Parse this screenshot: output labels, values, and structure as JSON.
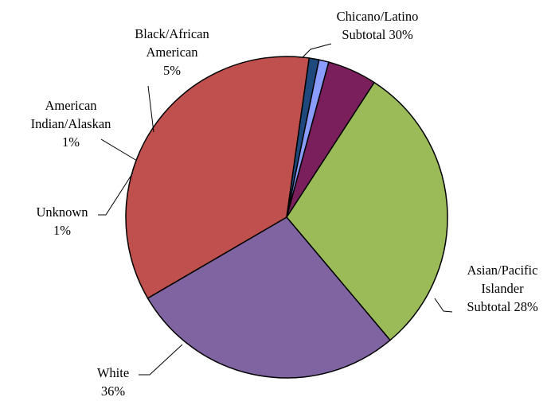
{
  "chart_data": {
    "type": "pie",
    "title": "",
    "slices": [
      {
        "name": "Chicano/Latino",
        "value": 30,
        "color": "#9bbb59",
        "label_lines": [
          "Chicano/Latino",
          "Subtotal 30%"
        ]
      },
      {
        "name": "Asian/Pacific Islander",
        "value": 28,
        "color": "#8064a2",
        "label_lines": [
          "Asian/Pacific",
          "Islander",
          "Subtotal 28%"
        ]
      },
      {
        "name": "White",
        "value": 36,
        "color": "#c0504d",
        "label_lines": [
          "White",
          "36%"
        ]
      },
      {
        "name": "Unknown",
        "value": 1,
        "color": "#1f497d",
        "label_lines": [
          "Unknown",
          "1%"
        ]
      },
      {
        "name": "American Indian/Alaskan",
        "value": 1,
        "color": "#8b9cff",
        "label_lines": [
          "American",
          "Indian/Alaskan",
          "1%"
        ]
      },
      {
        "name": "Black/African American",
        "value": 5,
        "color": "#7b1f5c",
        "label_lines": [
          "Black/African",
          "American",
          "5%"
        ]
      }
    ],
    "legend": "none"
  }
}
